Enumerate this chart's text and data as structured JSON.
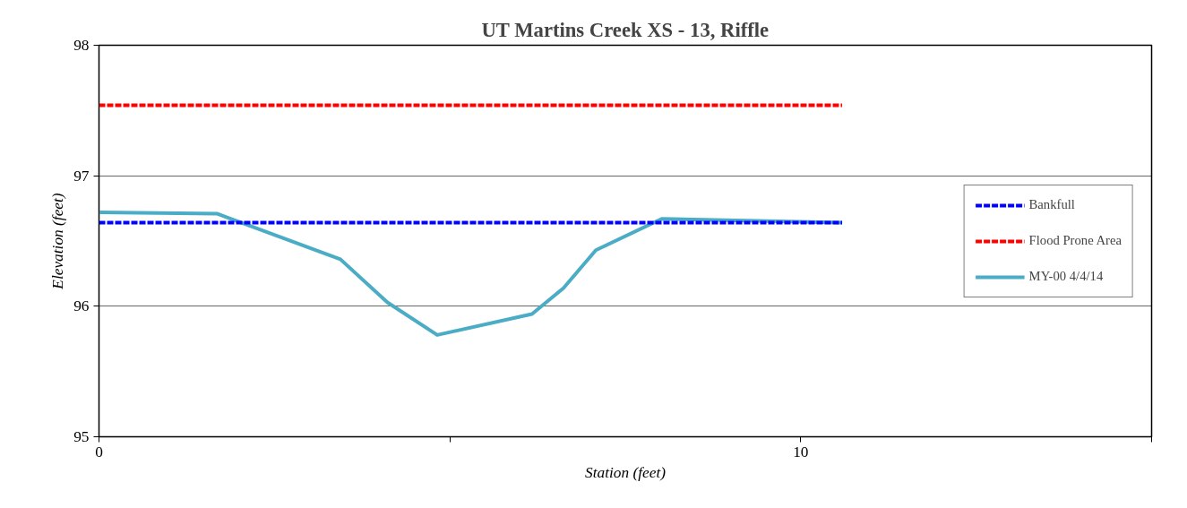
{
  "chart_data": {
    "type": "line",
    "title": "UT Martins Creek XS - 13, Riffle",
    "xlabel": "Station (feet)",
    "ylabel": "Elevation (feet)",
    "xlim": [
      0,
      15
    ],
    "xticks": [
      0,
      {
        "value": 5,
        "label": null
      },
      10,
      {
        "value": 15,
        "label": null
      }
    ],
    "ylim": [
      95,
      98
    ],
    "yticks": [
      95,
      96,
      97,
      98
    ],
    "grid": "y",
    "legend": "right",
    "marker": "none",
    "series": [
      {
        "name": "Bankfull",
        "color": "#0000ff",
        "line_style": "dashed",
        "x": [
          0,
          10.59
        ],
        "values": [
          96.64,
          96.64
        ]
      },
      {
        "name": "Flood Prone Area",
        "color": "#ff0000",
        "line_style": "dashed",
        "x": [
          0,
          10.59
        ],
        "values": [
          97.54,
          97.54
        ]
      },
      {
        "name": "MY-00 4/4/14",
        "color": "#4bacc6",
        "line_style": "solid",
        "x": [
          0,
          1.68,
          3.44,
          4.11,
          4.82,
          6.17,
          6.62,
          7.08,
          8.02,
          10.59
        ],
        "values": [
          96.72,
          96.71,
          96.36,
          96.03,
          95.78,
          95.94,
          96.14,
          96.43,
          96.67,
          96.64
        ]
      }
    ]
  }
}
